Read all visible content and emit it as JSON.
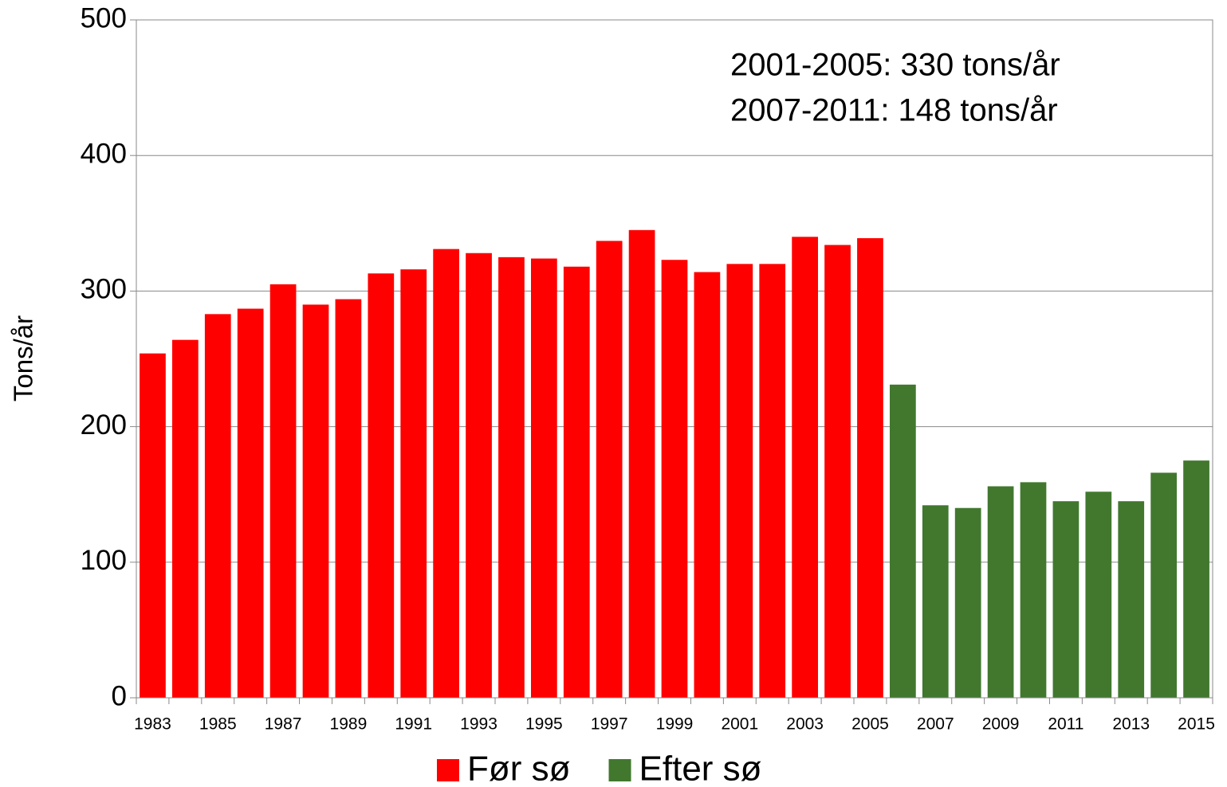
{
  "chart_data": {
    "type": "bar",
    "y_label": "Tons/år",
    "annotations": [
      "2001-2005:  330 tons/år",
      "2007-2011:  148 tons/år"
    ],
    "categories": [
      "1983",
      null,
      "1985",
      null,
      "1987",
      null,
      "1989",
      null,
      "1991",
      null,
      "1993",
      null,
      "1995",
      null,
      "1997",
      null,
      "1999",
      null,
      "2001",
      null,
      "2003",
      null,
      "2005",
      null,
      "2007",
      null,
      "2009",
      null,
      "2011",
      null,
      "2013",
      null,
      "2015"
    ],
    "series": [
      {
        "name": "Før sø",
        "color": "#ff0000",
        "values": [
          254,
          264,
          283,
          287,
          305,
          290,
          294,
          313,
          316,
          331,
          328,
          325,
          324,
          318,
          337,
          345,
          323,
          314,
          320,
          320,
          340,
          334,
          339,
          null,
          null,
          null,
          null,
          null,
          null,
          null,
          null,
          null,
          null
        ]
      },
      {
        "name": "Efter sø",
        "color": "#41782e",
        "values": [
          null,
          null,
          null,
          null,
          null,
          null,
          null,
          null,
          null,
          null,
          null,
          null,
          null,
          null,
          null,
          null,
          null,
          null,
          null,
          null,
          null,
          null,
          null,
          231,
          142,
          140,
          156,
          159,
          145,
          152,
          145,
          166,
          175
        ]
      }
    ],
    "ylim": [
      0,
      500
    ],
    "yticks": [
      0,
      100,
      200,
      300,
      400,
      500
    ],
    "grid": true,
    "legend": "bottom"
  }
}
